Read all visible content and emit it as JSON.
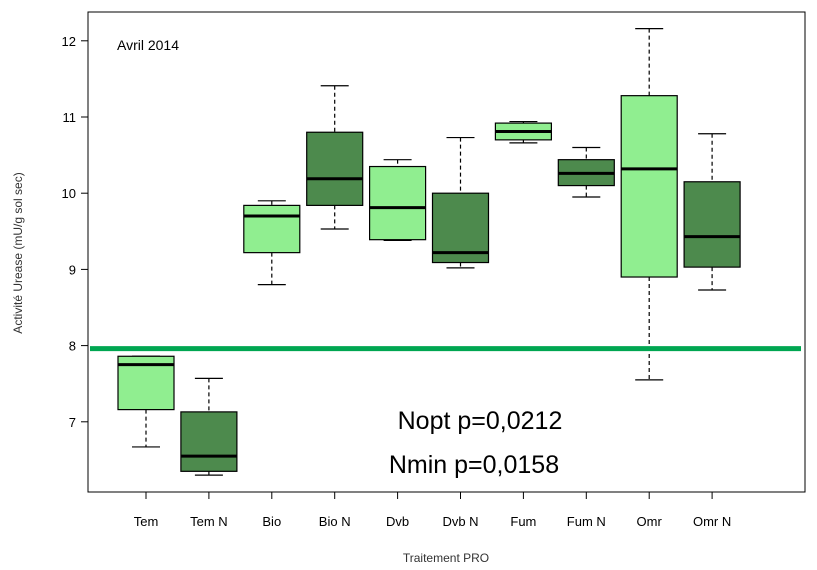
{
  "chart_data": {
    "type": "boxplot",
    "title": "Avril 2014",
    "xlabel": "Traitement PRO",
    "ylabel": "Activité Urease (mU/g sol sec)",
    "ylim": [
      6.1,
      12.4
    ],
    "yticks": [
      7,
      8,
      9,
      10,
      11,
      12
    ],
    "categories": [
      "Tem",
      "Tem N",
      "Bio",
      "Bio N",
      "Dvb",
      "Dvb N",
      "Fum",
      "Fum N",
      "Omr",
      "Omr N"
    ],
    "boxes": [
      {
        "label": "Tem",
        "min": 6.67,
        "q1": 7.16,
        "median": 7.75,
        "q3": 7.86,
        "max": 7.86,
        "color": "#90ee90"
      },
      {
        "label": "Tem N",
        "min": 6.3,
        "q1": 6.35,
        "median": 6.55,
        "q3": 7.13,
        "max": 7.57,
        "color": "#4d8a4d"
      },
      {
        "label": "Bio",
        "min": 8.8,
        "q1": 9.22,
        "median": 9.7,
        "q3": 9.84,
        "max": 9.9,
        "color": "#90ee90"
      },
      {
        "label": "Bio N",
        "min": 9.53,
        "q1": 9.84,
        "median": 10.19,
        "q3": 10.8,
        "max": 11.41,
        "color": "#4d8a4d"
      },
      {
        "label": "Dvb",
        "min": 9.38,
        "q1": 9.39,
        "median": 9.81,
        "q3": 10.35,
        "max": 10.44,
        "color": "#90ee90"
      },
      {
        "label": "Dvb N",
        "min": 9.02,
        "q1": 9.09,
        "median": 9.22,
        "q3": 10.0,
        "max": 10.73,
        "color": "#4d8a4d"
      },
      {
        "label": "Fum",
        "min": 10.66,
        "q1": 10.7,
        "median": 10.81,
        "q3": 10.92,
        "max": 10.94,
        "color": "#90ee90"
      },
      {
        "label": "Fum N",
        "min": 9.95,
        "q1": 10.1,
        "median": 10.26,
        "q3": 10.44,
        "max": 10.6,
        "color": "#4d8a4d"
      },
      {
        "label": "Omr",
        "min": 7.55,
        "q1": 8.9,
        "median": 10.32,
        "q3": 11.28,
        "max": 12.16,
        "color": "#90ee90"
      },
      {
        "label": "Omr N",
        "min": 8.73,
        "q1": 9.03,
        "median": 9.43,
        "q3": 10.15,
        "max": 10.78,
        "color": "#4d8a4d"
      }
    ],
    "reference_line": {
      "y": 7.96,
      "color": "#00a651"
    },
    "annotations": [
      "Nopt p=0,0212",
      "Nmin p=0,0158"
    ],
    "grid": false,
    "legend": "none"
  }
}
